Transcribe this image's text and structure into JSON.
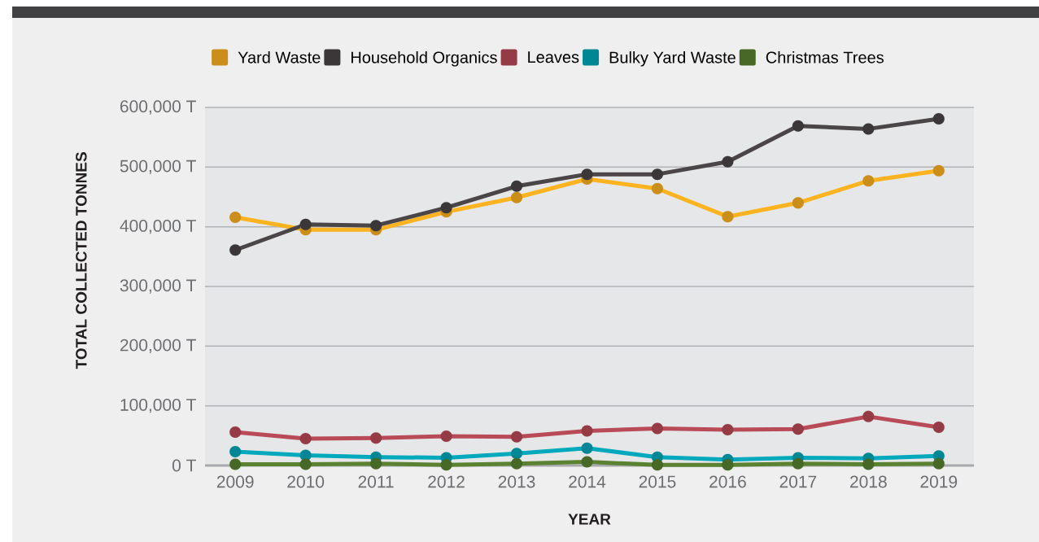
{
  "chart_data": {
    "type": "line",
    "xlabel": "YEAR",
    "ylabel": "TOTAL COLLECTED TONNES",
    "categories": [
      "2009",
      "2010",
      "2011",
      "2012",
      "2013",
      "2014",
      "2015",
      "2016",
      "2017",
      "2018",
      "2019"
    ],
    "ylim": [
      0,
      600000
    ],
    "yticks": [
      {
        "value": 0,
        "label": "0 T"
      },
      {
        "value": 100000,
        "label": "100,000 T"
      },
      {
        "value": 200000,
        "label": "200,000 T"
      },
      {
        "value": 300000,
        "label": "300,000 T"
      },
      {
        "value": 400000,
        "label": "400,000 T"
      },
      {
        "value": 500000,
        "label": "500,000 T"
      },
      {
        "value": 600000,
        "label": "600,000 T"
      }
    ],
    "grid": "y",
    "legend": "top",
    "marker": "circle",
    "line_style": "solid",
    "series": [
      {
        "name": "Yard Waste",
        "color": "#fdb21f",
        "values": [
          416000,
          395000,
          395000,
          425000,
          449000,
          480000,
          464000,
          417000,
          440000,
          477000,
          494000
        ]
      },
      {
        "name": "Household Organics",
        "color": "#4a4546",
        "values": [
          361000,
          404000,
          402000,
          432000,
          468000,
          488000,
          488000,
          509000,
          569000,
          564000,
          581000
        ]
      },
      {
        "name": "Leaves",
        "color": "#b94a57",
        "values": [
          56000,
          45000,
          46000,
          49000,
          48000,
          58000,
          62000,
          60000,
          61000,
          82000,
          64000
        ]
      },
      {
        "name": "Bulky Yard Waste",
        "color": "#00a9bc",
        "values": [
          23000,
          17000,
          14000,
          13000,
          20000,
          29000,
          14000,
          10000,
          13000,
          12000,
          16000
        ]
      },
      {
        "name": "Christmas Trees",
        "color": "#5a8231",
        "values": [
          2000,
          2000,
          3000,
          1000,
          3000,
          6000,
          1000,
          1000,
          3000,
          2000,
          3000
        ]
      }
    ]
  }
}
